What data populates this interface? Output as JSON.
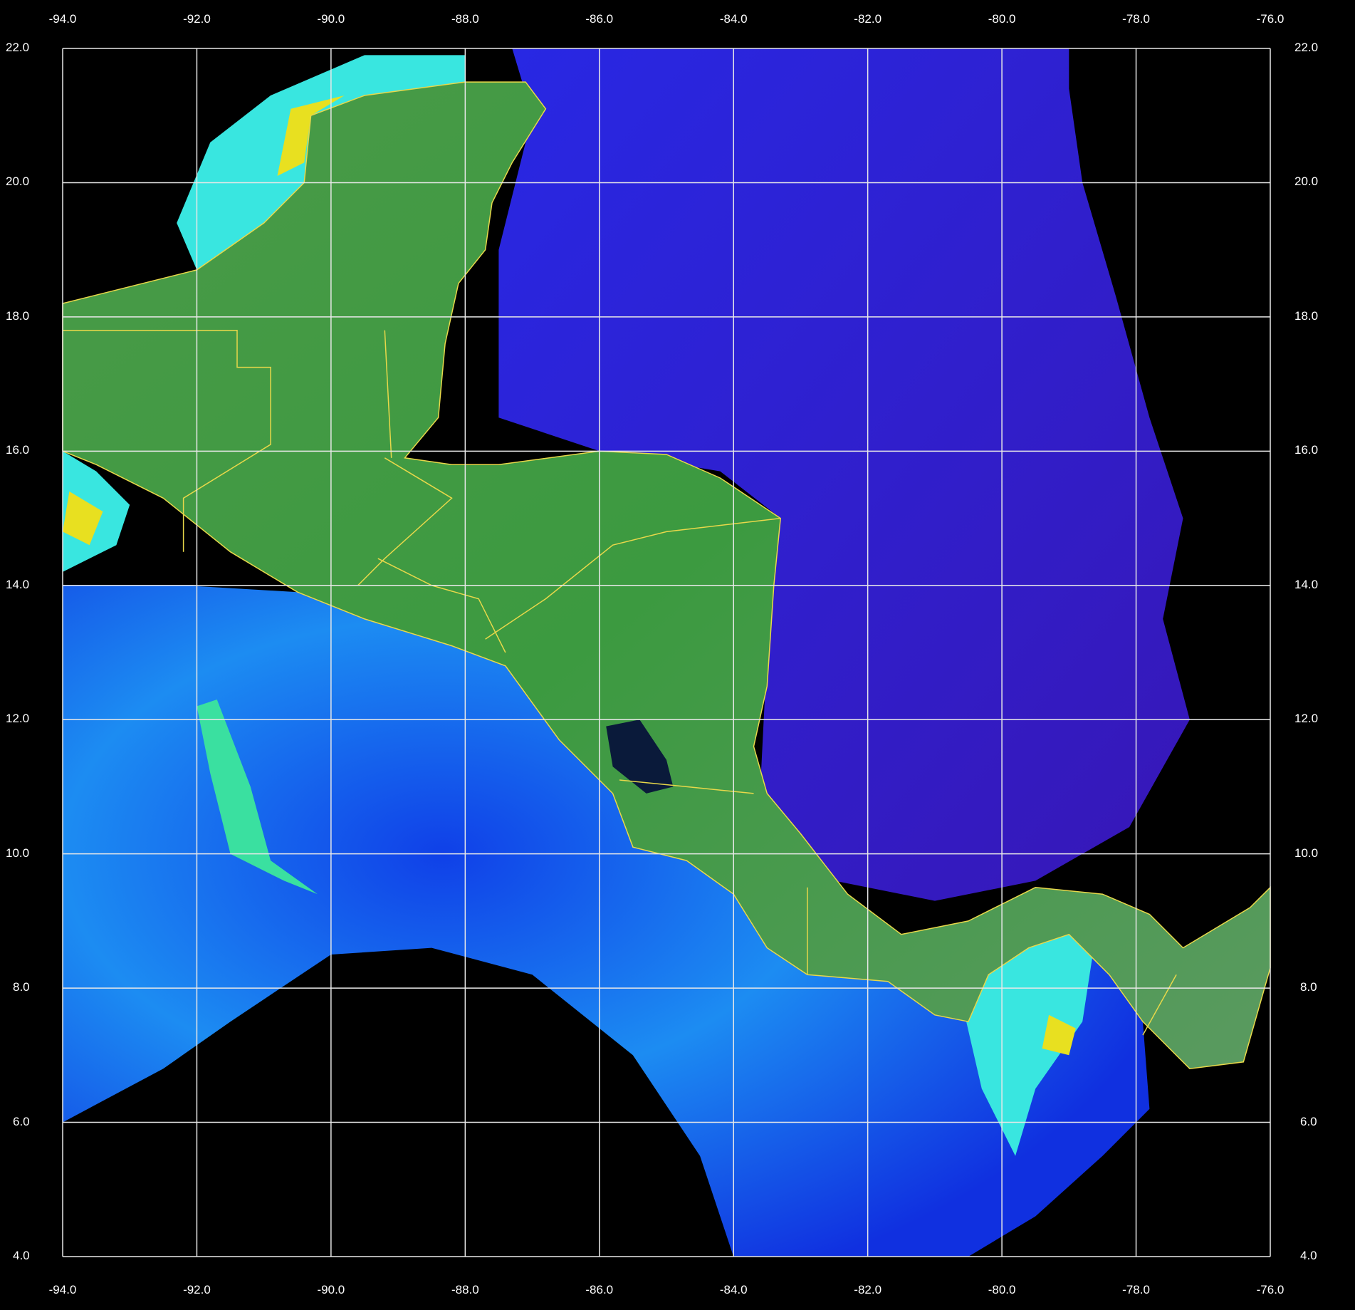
{
  "map": {
    "lon_range": [
      -94.0,
      -76.0
    ],
    "lat_range": [
      4.0,
      22.0
    ],
    "lon_ticks": [
      "-94.0",
      "-92.0",
      "-90.0",
      "-88.0",
      "-86.0",
      "-84.0",
      "-82.0",
      "-80.0",
      "-78.0",
      "-76.0"
    ],
    "lat_ticks": [
      "22.0",
      "20.0",
      "18.0",
      "16.0",
      "14.0",
      "12.0",
      "10.0",
      "8.0",
      "6.0",
      "4.0"
    ],
    "grid": true,
    "colors": {
      "background": "#000000",
      "grid": "#e8e8e8",
      "land": "#3f9a45",
      "border": "#e8d84a",
      "caribbean": "#2a22e6",
      "pacific": "#1a78f0",
      "coastal_high": "#39e6e0",
      "chlorophyll_peak": "#e8e020",
      "lake": "#0a1a3a"
    }
  }
}
